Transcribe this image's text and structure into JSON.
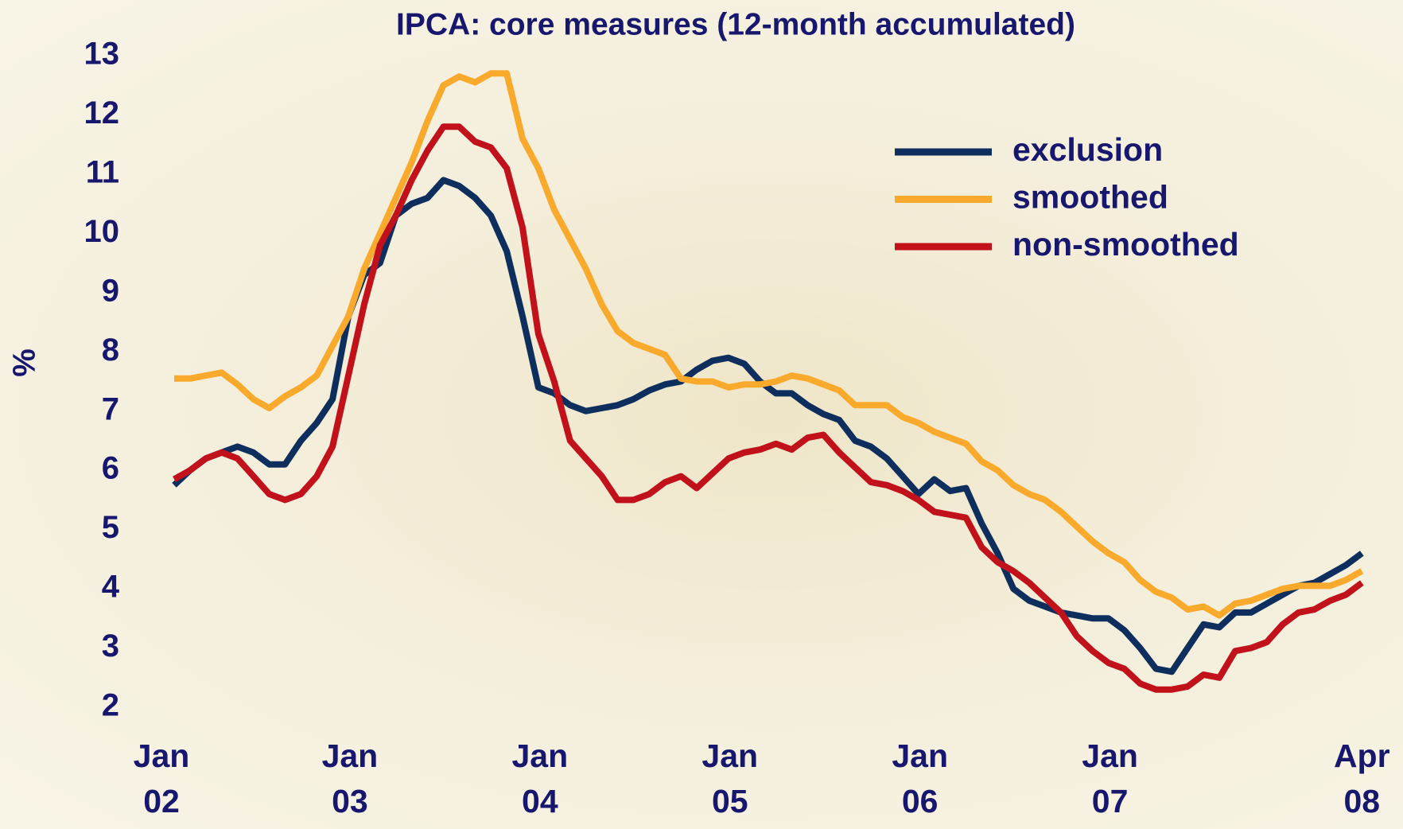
{
  "chart_data": {
    "type": "line",
    "title": "IPCA: core measures (12-month accumulated)",
    "y_label": "%",
    "categories": [
      "Jan 02",
      null,
      null,
      null,
      null,
      null,
      null,
      null,
      null,
      null,
      null,
      null,
      "Jan 03",
      null,
      null,
      null,
      null,
      null,
      null,
      null,
      null,
      null,
      null,
      null,
      "Jan 04",
      null,
      null,
      null,
      null,
      null,
      null,
      null,
      null,
      null,
      null,
      null,
      "Jan 05",
      null,
      null,
      null,
      null,
      null,
      null,
      null,
      null,
      null,
      null,
      null,
      "Jan 06",
      null,
      null,
      null,
      null,
      null,
      null,
      null,
      null,
      null,
      null,
      null,
      "Jan 07",
      null,
      null,
      null,
      null,
      null,
      null,
      null,
      null,
      null,
      null,
      null,
      null,
      null,
      null,
      "Apr 08"
    ],
    "series": [
      {
        "name": "exclusion",
        "color": "#0e2f5e",
        "values": [
          5.75,
          6.0,
          6.2,
          6.3,
          6.4,
          6.3,
          6.1,
          6.1,
          6.5,
          6.8,
          7.2,
          8.6,
          9.3,
          9.5,
          10.3,
          10.5,
          10.6,
          10.9,
          10.8,
          10.6,
          10.3,
          9.7,
          8.6,
          7.4,
          7.3,
          7.1,
          7.0,
          7.05,
          7.1,
          7.2,
          7.35,
          7.45,
          7.5,
          7.7,
          7.85,
          7.9,
          7.8,
          7.5,
          7.3,
          7.3,
          7.1,
          6.95,
          6.85,
          6.5,
          6.4,
          6.2,
          5.9,
          5.6,
          5.85,
          5.65,
          5.7,
          5.1,
          4.6,
          4.0,
          3.8,
          3.7,
          3.6,
          3.55,
          3.5,
          3.5,
          3.3,
          3.0,
          2.65,
          2.6,
          3.0,
          3.4,
          3.35,
          3.6,
          3.6,
          3.75,
          3.9,
          4.05,
          4.1,
          4.25,
          4.4,
          4.6
        ]
      },
      {
        "name": "smoothed",
        "color": "#f9aa2c",
        "values": [
          7.55,
          7.55,
          7.6,
          7.65,
          7.45,
          7.2,
          7.05,
          7.25,
          7.4,
          7.6,
          8.1,
          8.6,
          9.4,
          10.0,
          10.6,
          11.2,
          11.9,
          12.5,
          12.65,
          12.55,
          12.7,
          12.7,
          11.6,
          11.1,
          10.4,
          9.9,
          9.4,
          8.8,
          8.35,
          8.15,
          8.05,
          7.95,
          7.55,
          7.5,
          7.5,
          7.4,
          7.45,
          7.45,
          7.5,
          7.6,
          7.55,
          7.45,
          7.35,
          7.1,
          7.1,
          7.1,
          6.9,
          6.8,
          6.65,
          6.55,
          6.45,
          6.15,
          6.0,
          5.75,
          5.6,
          5.5,
          5.3,
          5.05,
          4.8,
          4.6,
          4.45,
          4.15,
          3.95,
          3.85,
          3.65,
          3.7,
          3.55,
          3.75,
          3.8,
          3.9,
          4.0,
          4.05,
          4.05,
          4.05,
          4.15,
          4.3
        ]
      },
      {
        "name": "non-smoothed",
        "color": "#c1121c",
        "values": [
          5.85,
          6.0,
          6.2,
          6.3,
          6.2,
          5.9,
          5.6,
          5.5,
          5.6,
          5.9,
          6.4,
          7.6,
          8.8,
          9.8,
          10.3,
          10.9,
          11.4,
          11.8,
          11.8,
          11.55,
          11.45,
          11.1,
          10.1,
          8.3,
          7.5,
          6.5,
          6.2,
          5.9,
          5.5,
          5.5,
          5.6,
          5.8,
          5.9,
          5.7,
          5.95,
          6.2,
          6.3,
          6.35,
          6.45,
          6.35,
          6.55,
          6.6,
          6.3,
          6.05,
          5.8,
          5.75,
          5.65,
          5.5,
          5.3,
          5.25,
          5.2,
          4.7,
          4.45,
          4.3,
          4.1,
          3.85,
          3.6,
          3.2,
          2.95,
          2.75,
          2.65,
          2.4,
          2.3,
          2.3,
          2.35,
          2.55,
          2.5,
          2.95,
          3.0,
          3.1,
          3.4,
          3.6,
          3.65,
          3.8,
          3.9,
          4.1
        ]
      }
    ],
    "ylim": [
      2,
      13
    ],
    "yticks": [
      2,
      3,
      4,
      5,
      6,
      7,
      8,
      9,
      10,
      11,
      12,
      13
    ],
    "grid": false,
    "legend": "upper right"
  }
}
